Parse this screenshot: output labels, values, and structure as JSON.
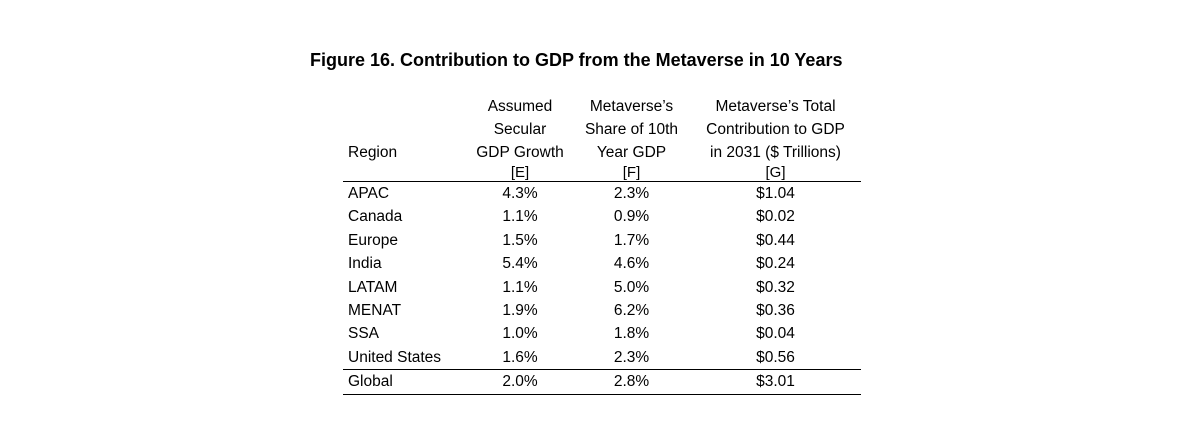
{
  "title": "Figure 16. Contribution to GDP from the Metaverse in 10 Years",
  "headers": {
    "region": "Region",
    "col_e": [
      "Assumed",
      "Secular",
      "GDP Growth"
    ],
    "col_f": [
      "Metaverse’s",
      "Share of 10th",
      "Year GDP"
    ],
    "col_g": [
      "Metaverse’s Total",
      "Contribution to GDP",
      "in 2031 ($ Trillions)"
    ],
    "codes": [
      "[E]",
      "[F]",
      "[G]"
    ]
  },
  "rows": [
    {
      "region": "APAC",
      "growth": "4.3%",
      "share": "2.3%",
      "contribution": "$1.04"
    },
    {
      "region": "Canada",
      "growth": "1.1%",
      "share": "0.9%",
      "contribution": "$0.02"
    },
    {
      "region": "Europe",
      "growth": "1.5%",
      "share": "1.7%",
      "contribution": "$0.44"
    },
    {
      "region": "India",
      "growth": "5.4%",
      "share": "4.6%",
      "contribution": "$0.24"
    },
    {
      "region": "LATAM",
      "growth": "1.1%",
      "share": "5.0%",
      "contribution": "$0.32"
    },
    {
      "region": "MENAT",
      "growth": "1.9%",
      "share": "6.2%",
      "contribution": "$0.36"
    },
    {
      "region": "SSA",
      "growth": "1.0%",
      "share": "1.8%",
      "contribution": "$0.04"
    },
    {
      "region": "United States",
      "growth": "1.6%",
      "share": "2.3%",
      "contribution": "$0.56"
    }
  ],
  "total": {
    "region": "Global",
    "growth": "2.0%",
    "share": "2.8%",
    "contribution": "$3.01"
  }
}
